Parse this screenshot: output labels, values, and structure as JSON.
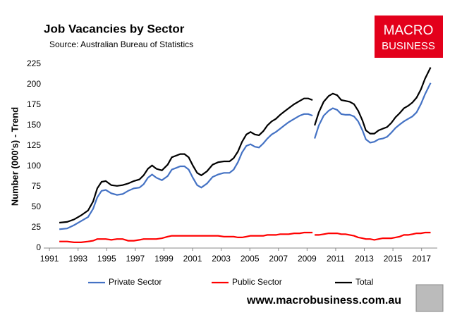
{
  "chart_data": {
    "type": "line",
    "title": "Job Vacancies by Sector",
    "subtitle": "Source: Australian Bureau of Statistics",
    "ylabel": "Number (000's) - Trend",
    "x": [
      1991.69,
      1992.23,
      1992.72,
      1993.21,
      1993.7,
      1994.05,
      1994.34,
      1994.64,
      1994.93,
      1995.32,
      1995.72,
      1996.11,
      1996.5,
      1996.9,
      1997.29,
      1997.58,
      1997.88,
      1998.17,
      1998.47,
      1998.86,
      1999.26,
      1999.55,
      1999.85,
      2000.14,
      2000.43,
      2000.73,
      2001.02,
      2001.32,
      2001.61,
      2002.01,
      2002.4,
      2002.79,
      2003.19,
      2003.58,
      2003.87,
      2004.17,
      2004.46,
      2004.76,
      2005.05,
      2005.35,
      2005.64,
      2005.94,
      2006.23,
      2006.53,
      2006.82,
      2007.12,
      2007.41,
      2007.71,
      2008.1,
      2008.49,
      2008.79,
      2009.08,
      2009.38,
      2009.45,
      2009.53,
      2009.82,
      2010.16,
      2010.51,
      2010.8,
      2011.1,
      2011.39,
      2011.69,
      2011.98,
      2012.28,
      2012.57,
      2012.87,
      2013.11,
      2013.41,
      2013.7,
      2014.0,
      2014.29,
      2014.59,
      2014.88,
      2015.18,
      2015.47,
      2015.77,
      2016.06,
      2016.36,
      2016.65,
      2016.95,
      2017.24,
      2017.63
    ],
    "series": [
      {
        "name": "Private Sector",
        "color": "#4472c4",
        "values": [
          23,
          24,
          28,
          33,
          38,
          48,
          62,
          70,
          71,
          67,
          65,
          66,
          70,
          73,
          74,
          78,
          86,
          90,
          86,
          83,
          88,
          96,
          98,
          100,
          100,
          96,
          86,
          77,
          74,
          79,
          87,
          90,
          92,
          92,
          96,
          105,
          117,
          125,
          127,
          124,
          123,
          128,
          134,
          139,
          142,
          146,
          150,
          154,
          158,
          162,
          164,
          164,
          162,
          null,
          134,
          150,
          162,
          168,
          171,
          169,
          164,
          163,
          163,
          161,
          155,
          144,
          133,
          129,
          130,
          133,
          134,
          136,
          141,
          147,
          151,
          155,
          158,
          161,
          166,
          176,
          188,
          202
        ]
      },
      {
        "name": "Public Sector",
        "color": "#ff0000",
        "values": [
          8,
          8,
          7,
          7,
          8,
          9,
          11,
          11,
          11,
          10,
          11,
          11,
          9,
          9,
          10,
          11,
          11,
          11,
          11,
          12,
          14,
          15,
          15,
          15,
          15,
          15,
          15,
          15,
          15,
          15,
          15,
          15,
          14,
          14,
          14,
          13,
          13,
          14,
          15,
          15,
          15,
          15,
          16,
          16,
          16,
          17,
          17,
          17,
          18,
          18,
          19,
          19,
          19,
          null,
          16,
          16,
          17,
          18,
          18,
          18,
          17,
          17,
          16,
          15,
          13,
          12,
          11,
          11,
          10,
          11,
          12,
          12,
          12,
          13,
          14,
          16,
          16,
          17,
          18,
          18,
          19,
          19
        ]
      },
      {
        "name": "Total",
        "color": "#000000",
        "values": [
          31,
          32,
          35,
          40,
          46,
          57,
          73,
          81,
          82,
          77,
          76,
          77,
          79,
          82,
          84,
          89,
          97,
          101,
          97,
          95,
          102,
          111,
          113,
          115,
          115,
          111,
          101,
          92,
          89,
          94,
          102,
          105,
          106,
          106,
          110,
          118,
          130,
          139,
          142,
          139,
          138,
          143,
          150,
          155,
          158,
          163,
          167,
          171,
          176,
          180,
          183,
          183,
          181,
          null,
          150,
          166,
          179,
          186,
          189,
          187,
          181,
          180,
          179,
          176,
          168,
          156,
          144,
          140,
          140,
          144,
          146,
          148,
          153,
          160,
          165,
          171,
          174,
          178,
          184,
          194,
          207,
          221
        ]
      }
    ],
    "xlim": [
      1990.6,
      2018.1
    ],
    "xticks": [
      1991,
      1993,
      1995,
      1997,
      1999,
      2001,
      2003,
      2005,
      2007,
      2009,
      2011,
      2013,
      2015,
      2017
    ],
    "ylim": [
      0,
      225
    ],
    "yticks": [
      0,
      25,
      50,
      75,
      100,
      125,
      150,
      175,
      200,
      225
    ],
    "grid": false,
    "legend": "bottom"
  },
  "logo_lines": [
    "MACRO",
    "BUSINESS"
  ],
  "website": "www.macrobusiness.com.au"
}
